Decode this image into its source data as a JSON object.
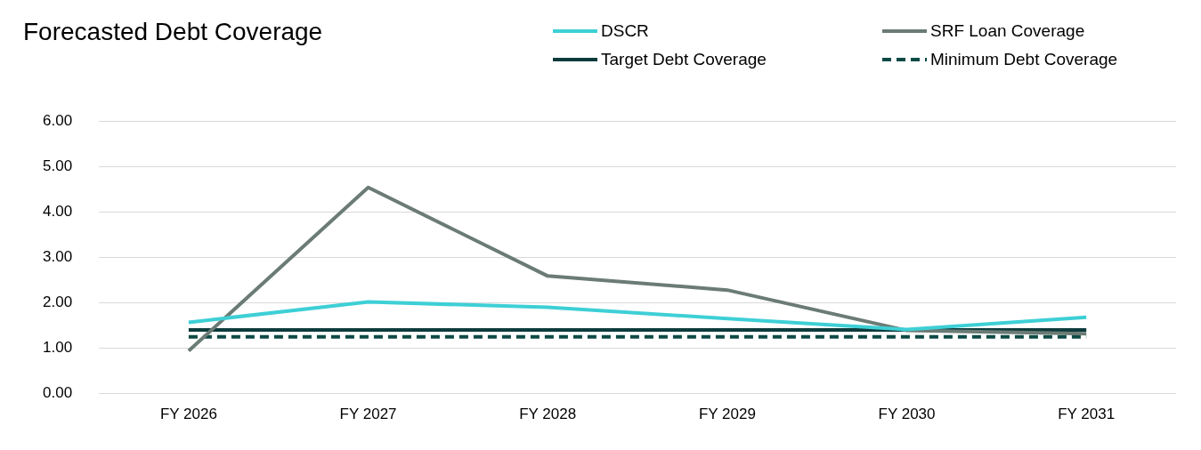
{
  "chart_data": {
    "type": "line",
    "title": "Forecasted Debt Coverage",
    "categories": [
      "FY 2026",
      "FY 2027",
      "FY 2028",
      "FY 2029",
      "FY 2030",
      "FY 2031"
    ],
    "series": [
      {
        "name": "DSCR",
        "color": "#3ecfd6",
        "values": [
          1.57,
          2.02,
          1.9,
          1.65,
          1.41,
          1.68
        ]
      },
      {
        "name": "SRF Loan Coverage",
        "color": "#6b7b75",
        "values": [
          0.94,
          4.54,
          2.59,
          2.28,
          1.39,
          1.32
        ]
      },
      {
        "name": "Target Debt Coverage",
        "color": "#0d3b3b",
        "values": [
          1.4,
          1.4,
          1.4,
          1.4,
          1.4,
          1.4
        ]
      },
      {
        "name": "Minimum Debt Coverage",
        "color": "#0d4a45",
        "line_style": "dashed",
        "values": [
          1.25,
          1.25,
          1.25,
          1.25,
          1.25,
          1.25
        ]
      }
    ],
    "ylim": [
      0,
      6
    ],
    "yticks": [
      {
        "value": 0,
        "label": "0.00"
      },
      {
        "value": 1,
        "label": "1.00"
      },
      {
        "value": 2,
        "label": "2.00"
      },
      {
        "value": 3,
        "label": "3.00"
      },
      {
        "value": 4,
        "label": "4.00"
      },
      {
        "value": 5,
        "label": "5.00"
      },
      {
        "value": 6,
        "label": "6.00"
      }
    ],
    "grid": "y",
    "legend": "top right",
    "marker": "none",
    "line_style": "solid"
  }
}
